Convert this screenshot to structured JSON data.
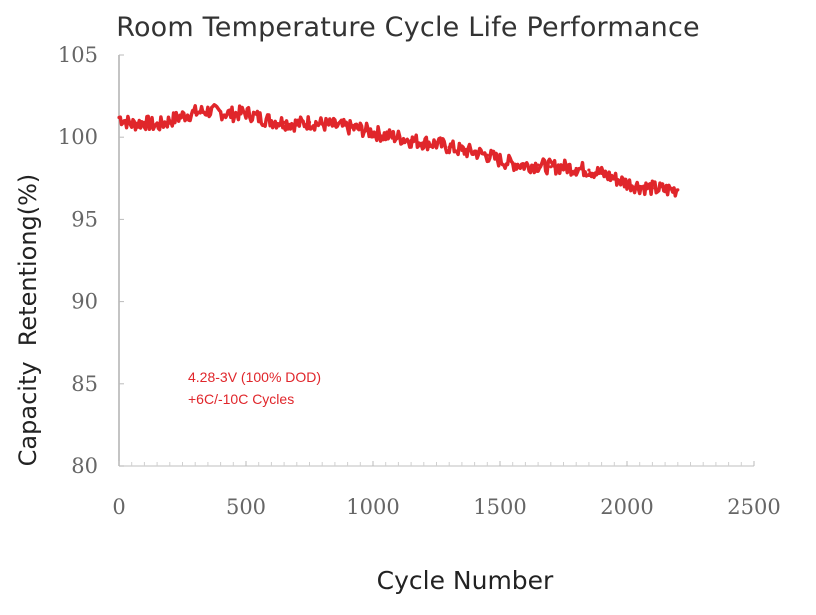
{
  "chart_data": {
    "type": "line",
    "title": "Room Temperature Cycle Life Performance",
    "xlabel": "Cycle Number",
    "ylabel": "Capacity  Retentiong(%)",
    "xlim": [
      0,
      2500
    ],
    "ylim": [
      80,
      105
    ],
    "xticks": [
      0,
      500,
      1000,
      1500,
      2000,
      2500
    ],
    "xtick_labels": [
      "0",
      "500",
      "1000",
      "1500",
      "2000",
      "2500"
    ],
    "yticks": [
      80,
      85,
      90,
      95,
      100,
      105
    ],
    "ytick_labels": [
      "80",
      "85",
      "90",
      "95",
      "100",
      "105"
    ],
    "grid": false,
    "annotation": [
      "4.28-3V (100% DOD)",
      "+6C/-10C Cycles"
    ],
    "series": [
      {
        "name": "Capacity Retention",
        "color": "#e0262b",
        "x": [
          0,
          50,
          100,
          150,
          200,
          250,
          300,
          350,
          400,
          450,
          500,
          550,
          600,
          650,
          700,
          750,
          800,
          850,
          900,
          950,
          1000,
          1050,
          1100,
          1150,
          1200,
          1250,
          1300,
          1350,
          1400,
          1450,
          1500,
          1550,
          1600,
          1650,
          1700,
          1750,
          1800,
          1850,
          1900,
          1950,
          2000,
          2050,
          2100,
          2150,
          2200
        ],
        "y": [
          101.2,
          100.8,
          100.9,
          100.7,
          101.0,
          101.3,
          101.5,
          101.6,
          101.5,
          101.4,
          101.5,
          101.2,
          101.0,
          100.9,
          100.8,
          100.9,
          100.8,
          100.7,
          100.6,
          100.5,
          100.3,
          100.1,
          100.0,
          99.8,
          99.7,
          99.6,
          99.4,
          99.2,
          99.1,
          98.9,
          98.6,
          98.4,
          98.3,
          98.3,
          98.2,
          98.2,
          98.1,
          98.0,
          97.8,
          97.5,
          97.2,
          97.0,
          96.9,
          96.8,
          96.8
        ]
      }
    ]
  }
}
